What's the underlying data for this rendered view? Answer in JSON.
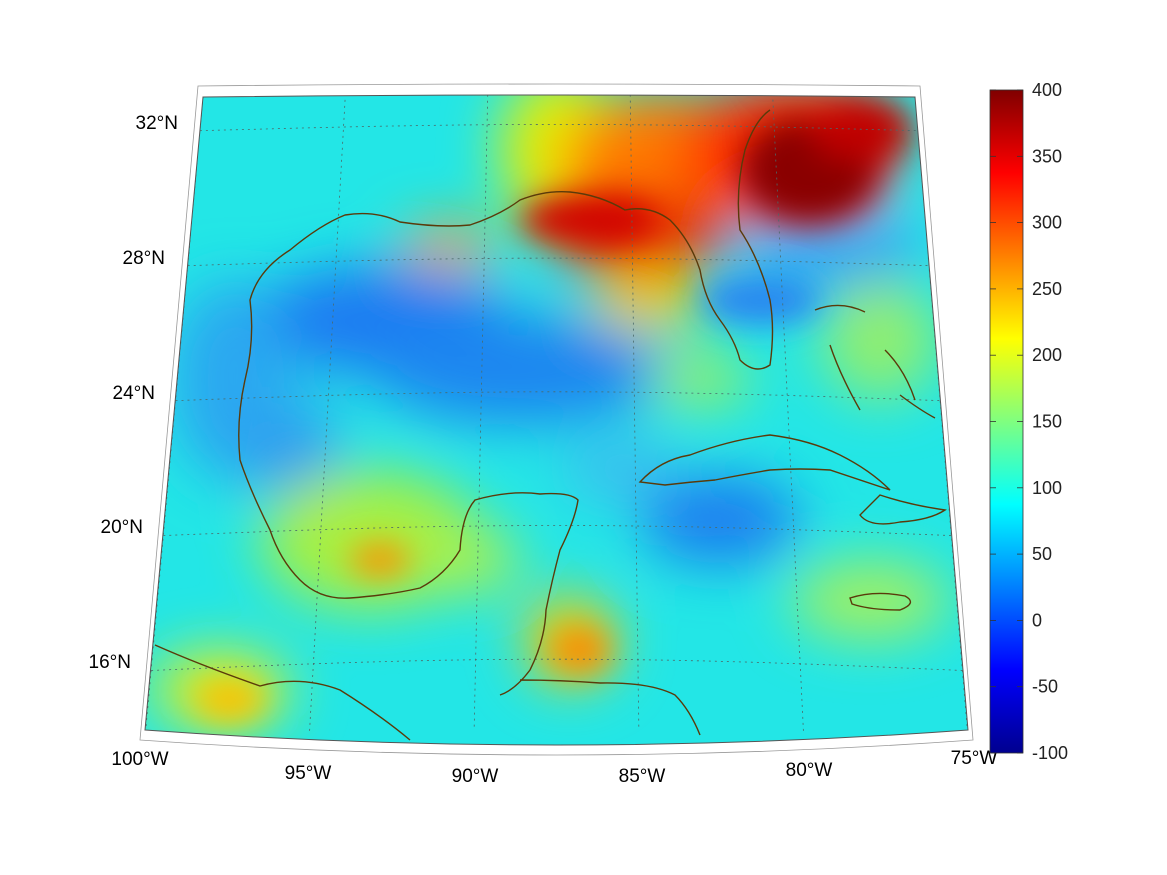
{
  "map": {
    "projection": "conic",
    "lon_range": [
      -100,
      -75
    ],
    "lat_range": [
      14,
      33
    ],
    "graticule_lons": [
      -100,
      -95,
      -90,
      -85,
      -80,
      -75
    ],
    "graticule_lats": [
      16,
      20,
      24,
      28,
      32
    ],
    "lon_labels": [
      "100°W",
      "95°W",
      "90°W",
      "85°W",
      "80°W",
      "75°W"
    ],
    "lat_labels": [
      "16°N",
      "20°N",
      "24°N",
      "28°N",
      "32°N"
    ],
    "coastline_color": "#5a3a0a",
    "ocean_base_color": "#23e6e6"
  },
  "colorbar": {
    "colormap": "jet",
    "min": -100,
    "max": 400,
    "ticks": [
      "400",
      "350",
      "300",
      "250",
      "200",
      "150",
      "100",
      "50",
      "0",
      "-50",
      "-100"
    ]
  }
}
